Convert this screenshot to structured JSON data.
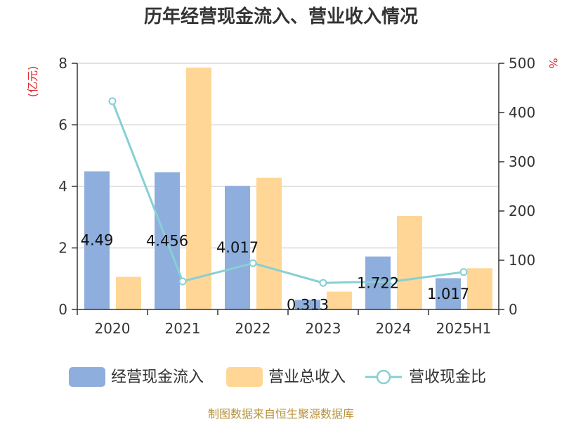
{
  "colors": {
    "cash": "#8eaedd",
    "revenue": "#ffd695",
    "ratio": "#86d0d4",
    "grid": "#d9d9d9",
    "axis": "#333333",
    "unit": "#e0282a",
    "source": "#b8923a"
  },
  "chart_data": {
    "type": "bar",
    "title": "历年经营现金流入、营业收入情况",
    "y_left_label": "(亿元)",
    "y_right_label": "%",
    "categories": [
      "2020",
      "2021",
      "2022",
      "2023",
      "2024",
      "2025H1"
    ],
    "ylim_left": [
      0,
      8
    ],
    "yticks_left": [
      0,
      2,
      4,
      6,
      8
    ],
    "ylim_right": [
      0,
      500
    ],
    "yticks_right": [
      0,
      100,
      200,
      300,
      400,
      500
    ],
    "grid": true,
    "legend_position": "bottom",
    "series": [
      {
        "name": "经营现金流入",
        "type": "bar",
        "axis": "left",
        "values": [
          4.49,
          4.456,
          4.017,
          0.313,
          1.722,
          1.017
        ],
        "data_labels": [
          "4.49",
          "4.456",
          "4.017",
          "0.313",
          "1.722",
          "1.017"
        ]
      },
      {
        "name": "营业总收入",
        "type": "bar",
        "axis": "left",
        "values": [
          1.06,
          7.86,
          4.28,
          0.58,
          3.04,
          1.34
        ]
      },
      {
        "name": "营收现金比",
        "type": "line",
        "axis": "right",
        "values": [
          423,
          57,
          94,
          54,
          57,
          76
        ]
      }
    ]
  },
  "source": "制图数据来自恒生聚源数据库"
}
